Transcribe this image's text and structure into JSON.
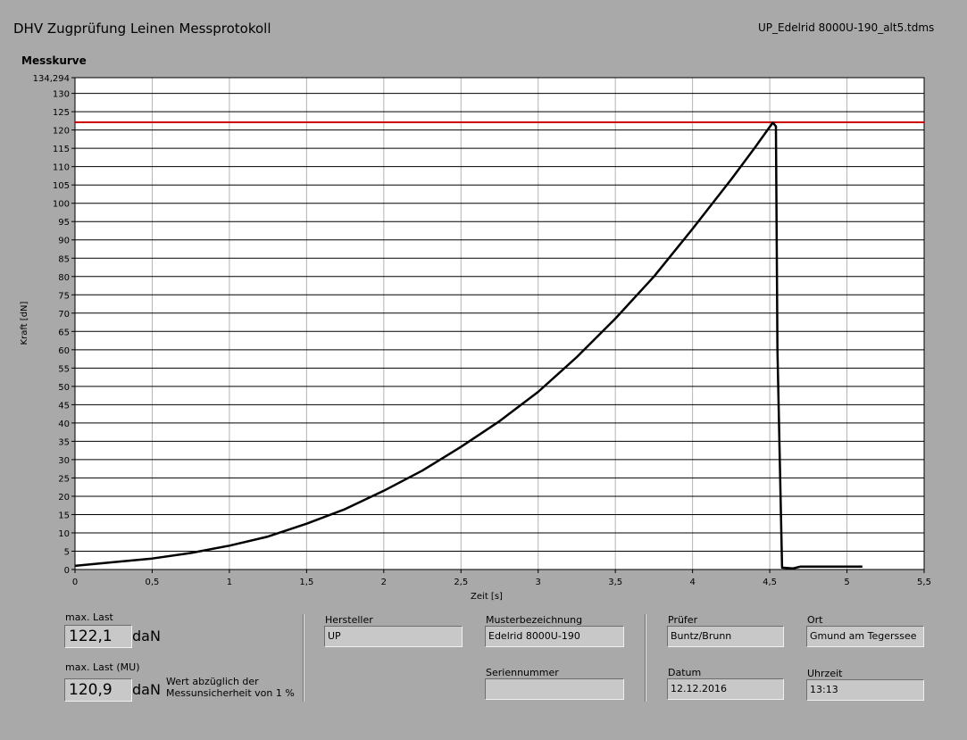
{
  "header": {
    "title": "DHV Zugprüfung Leinen Messprotokoll",
    "file": "UP_Edelrid 8000U-190_alt5.tdms"
  },
  "chart_data": {
    "type": "line",
    "title": "Messkurve",
    "x_label": "Zeit [s]",
    "y_label": "Kraft [dN]",
    "x": [
      0,
      0.25,
      0.5,
      0.75,
      1,
      1.25,
      1.5,
      1.75,
      2,
      2.25,
      2.5,
      2.75,
      3,
      3.25,
      3.5,
      3.75,
      4,
      4.25,
      4.4,
      4.52,
      4.54,
      4.55,
      4.58,
      4.65,
      4.7,
      4.9,
      5.1
    ],
    "series": [
      {
        "name": "Kraft",
        "color": "#000000",
        "values": [
          1,
          2,
          3,
          4.5,
          6.5,
          9,
          12.5,
          16.5,
          21.5,
          27,
          33.5,
          40.5,
          48.5,
          58,
          68.5,
          80,
          93,
          106.5,
          115,
          122,
          121,
          60,
          0.5,
          0.3,
          0.8,
          0.8,
          0.8
        ]
      }
    ],
    "reference_line": {
      "value": 122.1,
      "color": "#cc0000"
    },
    "xlim": [
      0,
      5.5
    ],
    "xticks": [
      0,
      {
        "value": 0.5,
        "label": "0,5"
      },
      1,
      {
        "value": 1.5,
        "label": "1,5"
      },
      2,
      {
        "value": 2.5,
        "label": "2,5"
      },
      3,
      {
        "value": 3.5,
        "label": "3,5"
      },
      4,
      {
        "value": 4.5,
        "label": "4,5"
      },
      5,
      {
        "value": 5.5,
        "label": "5,5"
      }
    ],
    "ylim": [
      0,
      134.294
    ],
    "yticks": [
      0,
      5,
      10,
      15,
      20,
      25,
      30,
      35,
      40,
      45,
      50,
      55,
      60,
      65,
      70,
      75,
      80,
      85,
      90,
      95,
      100,
      105,
      110,
      115,
      120,
      125,
      130,
      {
        "value": 134.294,
        "label": "134,294"
      }
    ],
    "grid": true
  },
  "results": [
    {
      "label": "max. Last",
      "value": "122,1",
      "unit": "daN"
    },
    {
      "label": "max. Last (MU)",
      "value": "120,9",
      "unit": "daN",
      "note": "Wert abzüglich der Messunsicherheit von 1 %"
    }
  ],
  "fields": [
    {
      "label": "Hersteller",
      "value": "UP"
    },
    {
      "label": "Musterbezeichnung",
      "value": "Edelrid 8000U-190"
    },
    {
      "label": "Seriennummer"
    },
    {
      "label": "Prüfer",
      "value": "Buntz/Brunn"
    },
    {
      "label": "Ort",
      "value": "Gmund am Tegerssee"
    },
    {
      "label": "Datum",
      "value": "12.12.2016"
    },
    {
      "label": "Uhrzeit",
      "value": "13:13"
    }
  ]
}
